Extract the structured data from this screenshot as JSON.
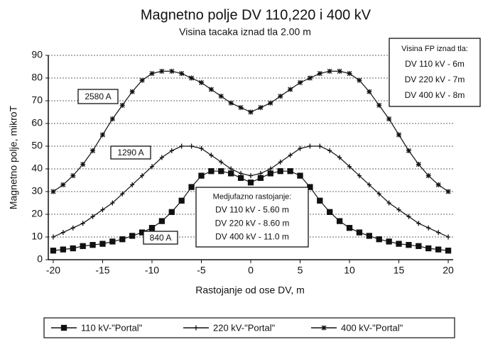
{
  "chart_data": {
    "type": "line",
    "title": "Magnetno polje DV 110,220 i 400 kV",
    "subtitle": "Visina tacaka iznad tla 2.00 m",
    "x_label": "Rastojanje od ose DV, m",
    "y_label": "Magnetno polje, mikroT",
    "x": [
      -20,
      -19,
      -18,
      -17,
      -16,
      -15,
      -14,
      -13,
      -12,
      -11,
      -10,
      -9,
      -8,
      -7,
      -6,
      -5,
      -4,
      -3,
      -2,
      -1,
      0,
      1,
      2,
      3,
      4,
      5,
      6,
      7,
      8,
      9,
      10,
      11,
      12,
      13,
      14,
      15,
      16,
      17,
      18,
      19,
      20
    ],
    "series": [
      {
        "name": "110 kV-\"Portal\"",
        "color": "#111111",
        "marker": "square",
        "values": [
          4,
          4.5,
          5,
          6,
          6.5,
          7,
          8,
          9,
          10.5,
          12,
          14,
          17,
          21,
          26,
          32,
          37,
          39,
          39,
          38,
          36,
          34,
          36,
          38,
          39,
          39,
          37,
          32,
          26,
          21,
          17,
          14,
          12,
          10.5,
          9,
          8,
          7,
          6.5,
          6,
          5,
          4.5,
          4
        ]
      },
      {
        "name": "220 kV-\"Portal\"",
        "color": "#111111",
        "marker": "plus",
        "values": [
          10,
          12,
          14,
          16,
          19,
          22,
          25,
          29,
          33,
          37,
          41,
          45,
          48,
          50,
          50,
          49,
          46,
          43,
          40,
          38,
          37,
          38,
          40,
          43,
          46,
          49,
          50,
          50,
          48,
          45,
          41,
          37,
          33,
          29,
          25,
          22,
          19,
          16,
          14,
          12,
          10
        ]
      },
      {
        "name": "400 kV-\"Portal\"",
        "color": "#111111",
        "marker": "star",
        "values": [
          30,
          33,
          37,
          42,
          48,
          55,
          62,
          68,
          74,
          79,
          82,
          83,
          83,
          82,
          80,
          78,
          75,
          72,
          69,
          67,
          65,
          67,
          69,
          72,
          75,
          78,
          80,
          82,
          83,
          83,
          82,
          79,
          74,
          68,
          62,
          55,
          48,
          42,
          37,
          33,
          30
        ]
      }
    ],
    "xlim": [
      -20.5,
      20.5
    ],
    "xticks": [
      -20,
      -15,
      -10,
      -5,
      0,
      5,
      10,
      15,
      20
    ],
    "ylim": [
      0,
      90
    ],
    "yticks": [
      0,
      10,
      20,
      30,
      40,
      50,
      60,
      70,
      80,
      90
    ],
    "grid": true,
    "legend": "bottom",
    "annotations": [
      "2580 A",
      "1290 A",
      "840 A"
    ],
    "height_box": [
      "Visina FP iznad tla:",
      "DV 110 kV - 6m",
      "DV 220 kV - 7m",
      "DV 400 kV - 8m"
    ],
    "spacing_box": [
      "Medjufazno rastojanje:",
      "DV 110 kV - 5.60 m",
      "DV 220 kV - 8.60 m",
      "DV 400 kV - 11.0 m"
    ]
  }
}
